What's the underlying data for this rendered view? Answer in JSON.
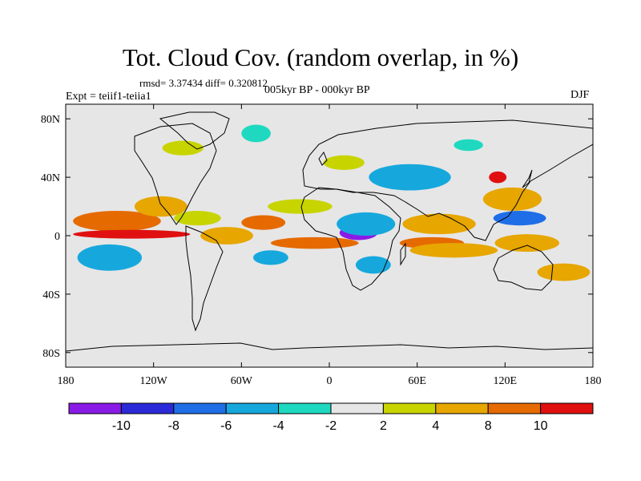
{
  "title": "Tot. Cloud Cov. (random overlap, in %)",
  "stats": "rmsd= 3.37434 diff= 0.320812",
  "experiment": "Expt = teiif1-teiia1",
  "period": "005kyr BP - 000kyr BP",
  "season": "DJF",
  "x_ticks": [
    {
      "lon": -180,
      "label": "180"
    },
    {
      "lon": -120,
      "label": "120W"
    },
    {
      "lon": -60,
      "label": "60W"
    },
    {
      "lon": 0,
      "label": "0"
    },
    {
      "lon": 60,
      "label": "60E"
    },
    {
      "lon": 120,
      "label": "120E"
    },
    {
      "lon": 180,
      "label": "180"
    }
  ],
  "y_ticks": [
    {
      "lat": 80,
      "label": "80N"
    },
    {
      "lat": 40,
      "label": "40N"
    },
    {
      "lat": 0,
      "label": "0"
    },
    {
      "lat": -40,
      "label": "40S"
    },
    {
      "lat": -80,
      "label": "80S"
    }
  ],
  "colorbar": {
    "levels": [
      -10,
      -8,
      -6,
      -4,
      -2,
      2,
      4,
      8,
      10
    ],
    "labels": [
      "-10",
      "-8",
      "-6",
      "-4",
      "-2",
      "2",
      "4",
      "8",
      "10"
    ],
    "colors": [
      "#8a1be6",
      "#2a2ad8",
      "#1e6ee8",
      "#16a8dd",
      "#1ed9c0",
      "#e6e6e6",
      "#c8d400",
      "#e7a600",
      "#e56a00",
      "#e01010"
    ]
  },
  "colors": {
    "background_field": "#e6e6e6",
    "coastline": "#000000"
  },
  "anomaly_regions": [
    {
      "lon": -145,
      "lat": 10,
      "rlon": 30,
      "rlat": 7,
      "value": 9
    },
    {
      "lon": -135,
      "lat": 1,
      "rlon": 40,
      "rlat": 3,
      "value": 11
    },
    {
      "lon": -150,
      "lat": -12,
      "rlon": 14,
      "rlat": 5,
      "value": -11
    },
    {
      "lon": -150,
      "lat": -15,
      "rlon": 22,
      "rlat": 9,
      "value": -5
    },
    {
      "lon": -115,
      "lat": 20,
      "rlon": 18,
      "rlat": 7,
      "value": 4
    },
    {
      "lon": -90,
      "lat": 12,
      "rlon": 16,
      "rlat": 5,
      "value": 3
    },
    {
      "lon": -70,
      "lat": 0,
      "rlon": 18,
      "rlat": 6,
      "value": 6
    },
    {
      "lon": -45,
      "lat": 9,
      "rlon": 15,
      "rlat": 5,
      "value": 8
    },
    {
      "lon": -40,
      "lat": -15,
      "rlon": 12,
      "rlat": 5,
      "value": -5
    },
    {
      "lon": -10,
      "lat": -5,
      "rlon": 30,
      "rlat": 4,
      "value": 9
    },
    {
      "lon": -20,
      "lat": 20,
      "rlon": 22,
      "rlat": 5,
      "value": 3
    },
    {
      "lon": 20,
      "lat": 2,
      "rlon": 13,
      "rlat": 5,
      "value": -11
    },
    {
      "lon": 25,
      "lat": 8,
      "rlon": 20,
      "rlat": 8,
      "value": -6
    },
    {
      "lon": 30,
      "lat": -20,
      "rlon": 12,
      "rlat": 6,
      "value": -5
    },
    {
      "lon": 60,
      "lat": 38,
      "rlon": 12,
      "rlat": 5,
      "value": -10
    },
    {
      "lon": 55,
      "lat": 40,
      "rlon": 28,
      "rlat": 9,
      "value": -5
    },
    {
      "lon": 75,
      "lat": 8,
      "rlon": 25,
      "rlat": 7,
      "value": 7
    },
    {
      "lon": 70,
      "lat": -5,
      "rlon": 22,
      "rlat": 4,
      "value": 9
    },
    {
      "lon": 85,
      "lat": -10,
      "rlon": 30,
      "rlat": 5,
      "value": 5
    },
    {
      "lon": 115,
      "lat": 40,
      "rlon": 6,
      "rlat": 4,
      "value": 11
    },
    {
      "lon": 125,
      "lat": 25,
      "rlon": 20,
      "rlat": 8,
      "value": 7
    },
    {
      "lon": 130,
      "lat": 12,
      "rlon": 18,
      "rlat": 5,
      "value": -7
    },
    {
      "lon": 135,
      "lat": -5,
      "rlon": 22,
      "rlat": 6,
      "value": 5
    },
    {
      "lon": 160,
      "lat": -25,
      "rlon": 18,
      "rlat": 6,
      "value": 4
    },
    {
      "lon": -100,
      "lat": 60,
      "rlon": 14,
      "rlat": 5,
      "value": 3
    },
    {
      "lon": -50,
      "lat": 70,
      "rlon": 10,
      "rlat": 6,
      "value": -3
    },
    {
      "lon": 10,
      "lat": 50,
      "rlon": 14,
      "rlat": 5,
      "value": 3
    },
    {
      "lon": 95,
      "lat": 62,
      "rlon": 10,
      "rlat": 4,
      "value": -3
    }
  ]
}
